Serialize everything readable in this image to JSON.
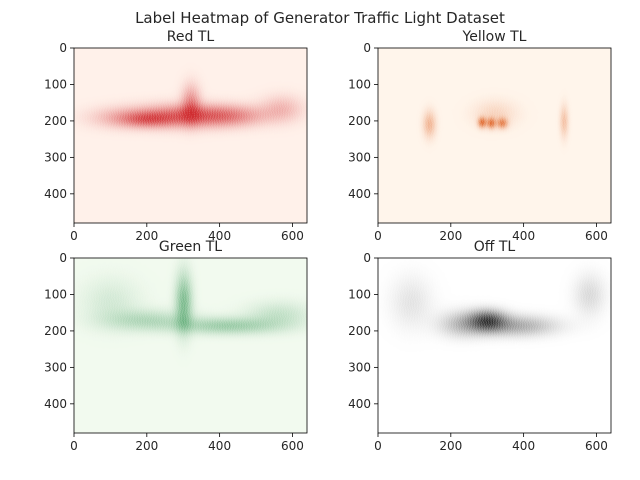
{
  "chart_data": {
    "type": "heatmap",
    "suptitle": "Label Heatmap of Generator Traffic Light Dataset",
    "xlim": [
      0,
      640
    ],
    "ylim": [
      480,
      0
    ],
    "xticks": [
      0,
      200,
      400,
      600
    ],
    "yticks": [
      0,
      100,
      200,
      300,
      400
    ],
    "panels": [
      {
        "title": "Red TL",
        "colormap": "Reds",
        "color": "#cb181d",
        "background": "#fff1ea",
        "blobs": [
          {
            "x": 300,
            "y": 185,
            "sx": 95,
            "sy": 22,
            "w": 0.85
          },
          {
            "x": 320,
            "y": 150,
            "sx": 18,
            "sy": 35,
            "w": 0.6
          },
          {
            "x": 200,
            "y": 195,
            "sx": 50,
            "sy": 15,
            "w": 0.55
          },
          {
            "x": 430,
            "y": 185,
            "sx": 70,
            "sy": 20,
            "w": 0.5
          },
          {
            "x": 570,
            "y": 165,
            "sx": 40,
            "sy": 25,
            "w": 0.35
          },
          {
            "x": 120,
            "y": 190,
            "sx": 60,
            "sy": 20,
            "w": 0.3
          }
        ]
      },
      {
        "title": "Yellow TL",
        "colormap": "Oranges",
        "color": "#d94801",
        "background": "#fff5eb",
        "blobs": [
          {
            "x": 285,
            "y": 203,
            "sx": 8,
            "sy": 10,
            "w": 0.95
          },
          {
            "x": 310,
            "y": 205,
            "sx": 8,
            "sy": 10,
            "w": 0.9
          },
          {
            "x": 340,
            "y": 205,
            "sx": 10,
            "sy": 10,
            "w": 0.8
          },
          {
            "x": 140,
            "y": 208,
            "sx": 12,
            "sy": 25,
            "w": 0.5
          },
          {
            "x": 510,
            "y": 200,
            "sx": 8,
            "sy": 30,
            "w": 0.4
          },
          {
            "x": 320,
            "y": 180,
            "sx": 40,
            "sy": 25,
            "w": 0.25
          }
        ]
      },
      {
        "title": "Green TL",
        "colormap": "Greens",
        "color": "#238b45",
        "background": "#f2faef",
        "blobs": [
          {
            "x": 300,
            "y": 120,
            "sx": 16,
            "sy": 55,
            "w": 0.75
          },
          {
            "x": 420,
            "y": 185,
            "sx": 95,
            "sy": 16,
            "w": 0.55
          },
          {
            "x": 200,
            "y": 170,
            "sx": 80,
            "sy": 20,
            "w": 0.4
          },
          {
            "x": 560,
            "y": 155,
            "sx": 60,
            "sy": 25,
            "w": 0.3
          },
          {
            "x": 100,
            "y": 120,
            "sx": 55,
            "sy": 45,
            "w": 0.2
          }
        ]
      },
      {
        "title": "Off TL",
        "colormap": "Greys",
        "color": "#000000",
        "background": "#ffffff",
        "blobs": [
          {
            "x": 300,
            "y": 170,
            "sx": 35,
            "sy": 20,
            "w": 0.8
          },
          {
            "x": 380,
            "y": 185,
            "sx": 75,
            "sy": 20,
            "w": 0.45
          },
          {
            "x": 230,
            "y": 180,
            "sx": 45,
            "sy": 25,
            "w": 0.35
          },
          {
            "x": 580,
            "y": 100,
            "sx": 30,
            "sy": 40,
            "w": 0.2
          },
          {
            "x": 90,
            "y": 120,
            "sx": 40,
            "sy": 50,
            "w": 0.15
          }
        ]
      }
    ]
  }
}
